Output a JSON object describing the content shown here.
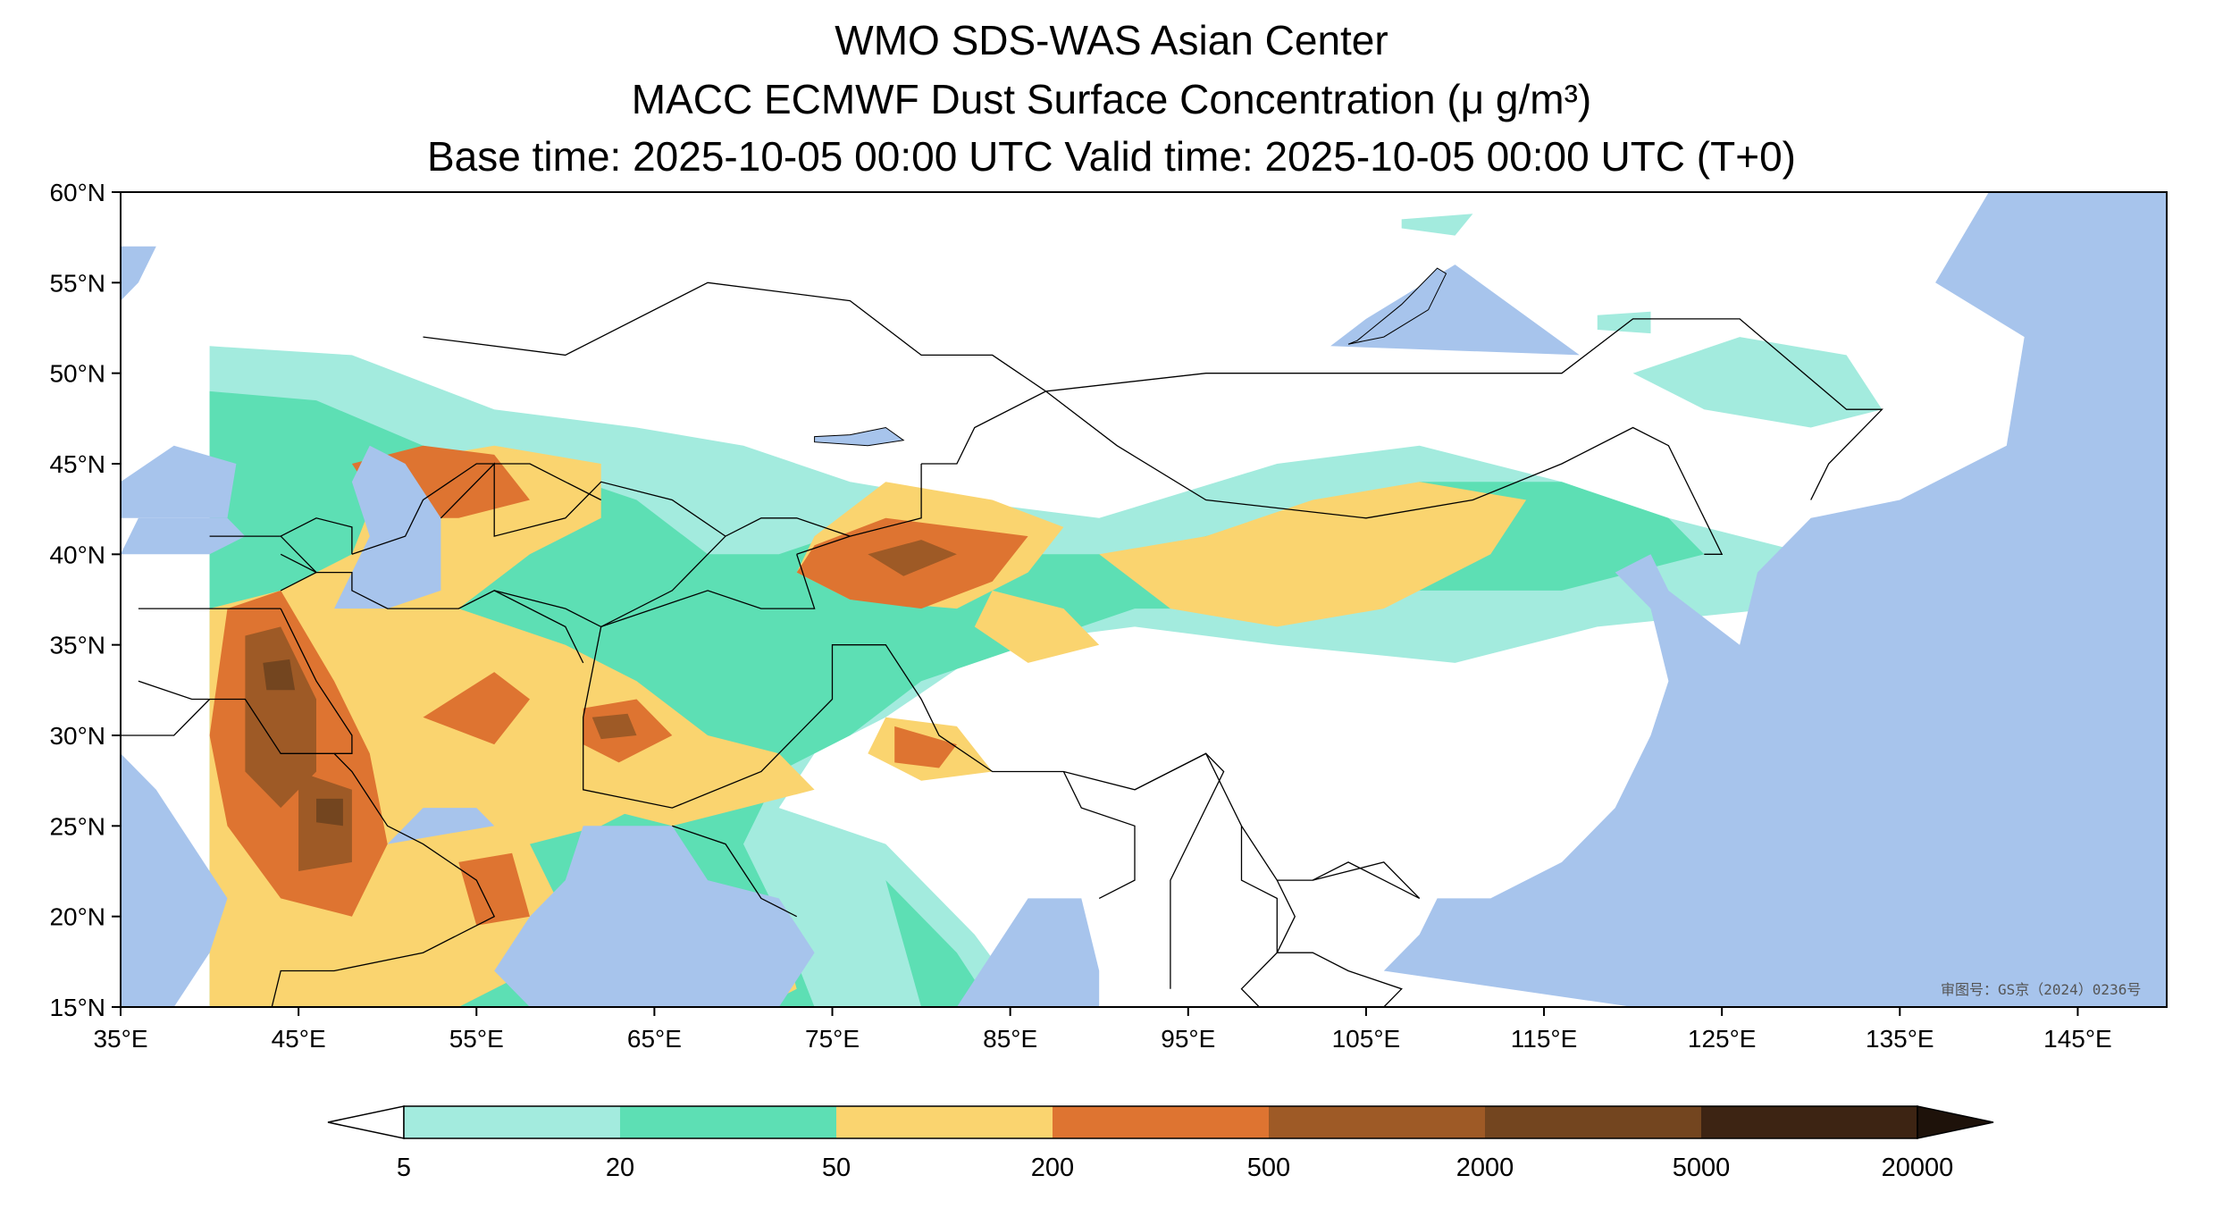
{
  "titles": {
    "line1": "WMO SDS-WAS Asian Center",
    "line2": "MACC ECMWF Dust Surface Concentration (μ g/m³)",
    "line3": "Base time: 2025-10-05 00:00 UTC Valid time: 2025-10-05 00:00 UTC (T+0)"
  },
  "map_extent": {
    "lon": [
      35,
      150
    ],
    "lat": [
      15,
      60
    ]
  },
  "axes": {
    "lon_ticks": [
      "35°E",
      "45°E",
      "55°E",
      "65°E",
      "75°E",
      "85°E",
      "95°E",
      "105°E",
      "115°E",
      "125°E",
      "135°E",
      "145°E"
    ],
    "lat_ticks": [
      "60°N",
      "55°N",
      "50°N",
      "45°N",
      "40°N",
      "35°N",
      "30°N",
      "25°N",
      "20°N",
      "15°N"
    ]
  },
  "colorbar": {
    "levels": [
      "5",
      "20",
      "50",
      "200",
      "500",
      "2000",
      "5000",
      "20000"
    ],
    "colors": [
      "#a3ebde",
      "#5ddfb4",
      "#fad46f",
      "#de7431",
      "#9e5a26",
      "#73451f",
      "#3d2413"
    ],
    "low_extend_color": "#ffffff",
    "high_extend_color": "#1e120a"
  },
  "colors": {
    "ocean": "#a7c4ec",
    "land": "#ffffff",
    "border": "#000000",
    "province": "#b0b0b0",
    "river": "#a7c4ec"
  },
  "approval_text": "审图号：GS京（2024）0236号",
  "dust_regions": [
    {
      "level": 0,
      "poly": [
        [
          40,
          51.5
        ],
        [
          48,
          51
        ],
        [
          56,
          48
        ],
        [
          64,
          47
        ],
        [
          70,
          46
        ],
        [
          76,
          44
        ],
        [
          82,
          43
        ],
        [
          90,
          42
        ],
        [
          100,
          45
        ],
        [
          108,
          46
        ],
        [
          116,
          44
        ],
        [
          122,
          42
        ],
        [
          130,
          40
        ],
        [
          128,
          37
        ],
        [
          118,
          36
        ],
        [
          110,
          34
        ],
        [
          100,
          35
        ],
        [
          92,
          36
        ],
        [
          84,
          35
        ],
        [
          78,
          31
        ],
        [
          74,
          29
        ],
        [
          72,
          26
        ],
        [
          78,
          24
        ],
        [
          83,
          19
        ],
        [
          86,
          15
        ],
        [
          40,
          15
        ]
      ]
    },
    {
      "level": 0,
      "poly": [
        [
          120,
          50
        ],
        [
          126,
          52
        ],
        [
          132,
          51
        ],
        [
          134,
          48
        ],
        [
          130,
          47
        ],
        [
          124,
          48
        ]
      ]
    },
    {
      "level": 0,
      "poly": [
        [
          118,
          53.2
        ],
        [
          121,
          53.4
        ],
        [
          121,
          52.2
        ],
        [
          118,
          52.4
        ]
      ]
    },
    {
      "level": 0,
      "poly": [
        [
          107,
          58.5
        ],
        [
          111,
          58.8
        ],
        [
          110,
          57.6
        ],
        [
          107,
          58
        ]
      ]
    },
    {
      "level": 1,
      "poly": [
        [
          40,
          49
        ],
        [
          46,
          48.5
        ],
        [
          52,
          46
        ],
        [
          58,
          45
        ],
        [
          64,
          43
        ],
        [
          68,
          40
        ],
        [
          72,
          40
        ],
        [
          78,
          42
        ],
        [
          84,
          40
        ],
        [
          92,
          40
        ],
        [
          100,
          42
        ],
        [
          108,
          44
        ],
        [
          116,
          44
        ],
        [
          122,
          42
        ],
        [
          124,
          40
        ],
        [
          116,
          38
        ],
        [
          108,
          38
        ],
        [
          100,
          37
        ],
        [
          92,
          37
        ],
        [
          86,
          35
        ],
        [
          80,
          33
        ],
        [
          76,
          30
        ],
        [
          72,
          28
        ],
        [
          70,
          24
        ],
        [
          72,
          20
        ],
        [
          74,
          15
        ],
        [
          40,
          15
        ]
      ]
    },
    {
      "level": 1,
      "poly": [
        [
          78,
          22
        ],
        [
          82,
          18
        ],
        [
          84,
          15
        ],
        [
          80,
          15
        ]
      ]
    },
    {
      "level": 2,
      "poly": [
        [
          40,
          37
        ],
        [
          44,
          38
        ],
        [
          48,
          40
        ],
        [
          50,
          45
        ],
        [
          56,
          46
        ],
        [
          62,
          45
        ],
        [
          62,
          42
        ],
        [
          58,
          40
        ],
        [
          54,
          37
        ],
        [
          60,
          35
        ],
        [
          64,
          33
        ],
        [
          68,
          30
        ],
        [
          66,
          27
        ],
        [
          62,
          25
        ],
        [
          58,
          24
        ],
        [
          60,
          20
        ],
        [
          58,
          17
        ],
        [
          54,
          15
        ],
        [
          40,
          15
        ]
      ]
    },
    {
      "level": 2,
      "poly": [
        [
          60,
          31
        ],
        [
          64,
          32
        ],
        [
          68,
          30
        ],
        [
          72,
          29
        ],
        [
          74,
          27
        ],
        [
          70,
          26
        ],
        [
          66,
          25
        ],
        [
          62,
          26
        ]
      ]
    },
    {
      "level": 2,
      "poly": [
        [
          68,
          19
        ],
        [
          72,
          19.5
        ],
        [
          73,
          16
        ],
        [
          71,
          15
        ],
        [
          67,
          15
        ]
      ]
    },
    {
      "level": 2,
      "poly": [
        [
          74,
          41
        ],
        [
          78,
          44
        ],
        [
          84,
          43
        ],
        [
          88,
          41.5
        ],
        [
          86,
          39
        ],
        [
          82,
          37
        ],
        [
          76,
          37.5
        ],
        [
          73,
          39
        ]
      ]
    },
    {
      "level": 2,
      "poly": [
        [
          90,
          40
        ],
        [
          96,
          41
        ],
        [
          102,
          43
        ],
        [
          108,
          44
        ],
        [
          114,
          43
        ],
        [
          112,
          40
        ],
        [
          106,
          37
        ],
        [
          100,
          36
        ],
        [
          94,
          37
        ]
      ]
    },
    {
      "level": 2,
      "poly": [
        [
          78,
          31
        ],
        [
          82,
          30.5
        ],
        [
          84,
          28
        ],
        [
          80,
          27.5
        ],
        [
          77,
          29
        ]
      ]
    },
    {
      "level": 2,
      "poly": [
        [
          84,
          38
        ],
        [
          88,
          37
        ],
        [
          90,
          35
        ],
        [
          86,
          34
        ],
        [
          83,
          36
        ]
      ]
    },
    {
      "level": 3,
      "poly": [
        [
          41,
          37
        ],
        [
          44,
          38
        ],
        [
          47,
          33
        ],
        [
          49,
          29
        ],
        [
          50,
          24
        ],
        [
          48,
          20
        ],
        [
          44,
          21
        ],
        [
          41,
          25
        ],
        [
          40,
          30
        ]
      ]
    },
    {
      "level": 3,
      "poly": [
        [
          48,
          45
        ],
        [
          52,
          46
        ],
        [
          56,
          45.5
        ],
        [
          58,
          43
        ],
        [
          54,
          42
        ],
        [
          50,
          42
        ]
      ]
    },
    {
      "level": 3,
      "poly": [
        [
          74,
          40.5
        ],
        [
          78,
          42
        ],
        [
          82,
          41.5
        ],
        [
          86,
          41
        ],
        [
          84,
          38.5
        ],
        [
          80,
          37
        ],
        [
          76,
          37.5
        ],
        [
          73,
          39
        ]
      ]
    },
    {
      "level": 3,
      "poly": [
        [
          61,
          31.5
        ],
        [
          64,
          32
        ],
        [
          66,
          30
        ],
        [
          63,
          28.5
        ],
        [
          61,
          29.5
        ]
      ]
    },
    {
      "level": 3,
      "poly": [
        [
          78.5,
          30.5
        ],
        [
          82,
          29.5
        ],
        [
          81,
          28.2
        ],
        [
          78.5,
          28.5
        ]
      ]
    },
    {
      "level": 3,
      "poly": [
        [
          54,
          23
        ],
        [
          57,
          23.5
        ],
        [
          58,
          20
        ],
        [
          55,
          19.5
        ]
      ]
    },
    {
      "level": 3,
      "poly": [
        [
          52,
          31
        ],
        [
          56,
          33.5
        ],
        [
          58,
          32
        ],
        [
          56,
          29.5
        ]
      ]
    },
    {
      "level": 4,
      "poly": [
        [
          42,
          35.5
        ],
        [
          44,
          36
        ],
        [
          46,
          32
        ],
        [
          46,
          28
        ],
        [
          44,
          26
        ],
        [
          42,
          28
        ]
      ]
    },
    {
      "level": 4,
      "poly": [
        [
          45,
          28
        ],
        [
          48,
          27
        ],
        [
          48,
          23
        ],
        [
          45,
          22.5
        ]
      ]
    },
    {
      "level": 4,
      "poly": [
        [
          61.5,
          31
        ],
        [
          63.5,
          31.2
        ],
        [
          64,
          30
        ],
        [
          62,
          29.8
        ]
      ]
    },
    {
      "level": 4,
      "poly": [
        [
          77,
          40
        ],
        [
          80,
          40.8
        ],
        [
          82,
          40
        ],
        [
          79,
          38.8
        ]
      ]
    },
    {
      "level": 5,
      "poly": [
        [
          43,
          34
        ],
        [
          44.5,
          34.2
        ],
        [
          44.8,
          32.5
        ],
        [
          43.2,
          32.5
        ]
      ]
    },
    {
      "level": 5,
      "poly": [
        [
          46,
          26.5
        ],
        [
          47.5,
          26.5
        ],
        [
          47.5,
          25
        ],
        [
          46,
          25.2
        ]
      ]
    }
  ],
  "lon_vals": [
    35,
    45,
    55,
    65,
    75,
    85,
    95,
    105,
    115,
    125,
    135,
    145
  ],
  "lat_vals": [
    60,
    55,
    50,
    45,
    40,
    35,
    30,
    25,
    20,
    15
  ]
}
